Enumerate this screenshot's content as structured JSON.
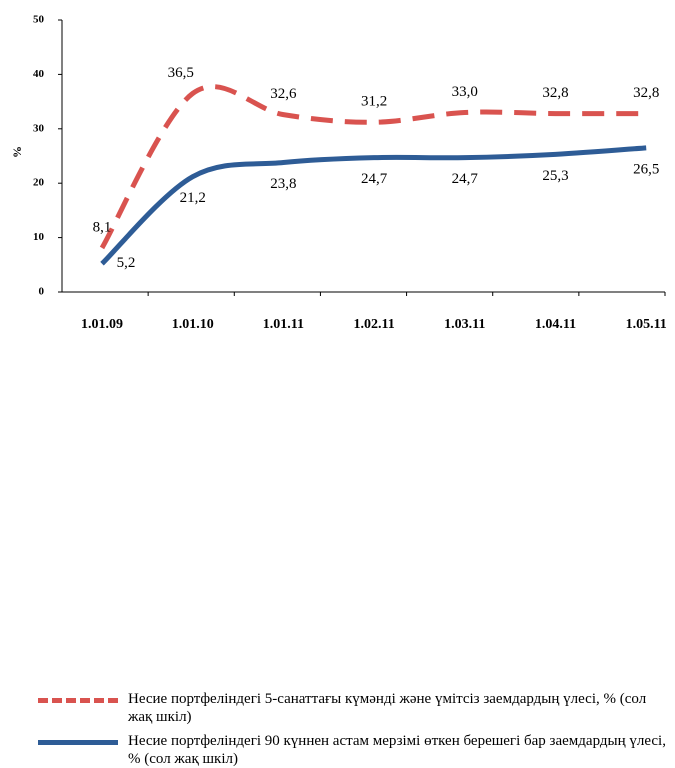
{
  "chart_data": {
    "type": "line",
    "y_label": "%",
    "categories": [
      "1.01.09",
      "1.01.10",
      "1.01.11",
      "1.02.11",
      "1.03.11",
      "1.04.11",
      "1.05.11"
    ],
    "series": [
      {
        "name": "Несие портфеліндегі 5-санаттағы күмәнді және үмітсіз заемдардың үлесі, % (сол жақ шкіл)",
        "color": "#d9534f",
        "dashed": true,
        "values": [
          8.1,
          36.5,
          32.6,
          31.2,
          33.0,
          32.8,
          32.8
        ],
        "value_labels": [
          "8,1",
          "36,5",
          "32,6",
          "31,2",
          "33,0",
          "32,8",
          "32,8"
        ]
      },
      {
        "name": "Несие портфеліндегі 90 күннен астам мерзімі өткен берешегі бар заемдардың үлесі, % (сол жақ шкіл)",
        "color": "#2e5c96",
        "dashed": false,
        "values": [
          5.2,
          21.2,
          23.8,
          24.7,
          24.7,
          25.3,
          26.5
        ],
        "value_labels": [
          "5,2",
          "21,2",
          "23,8",
          "24,7",
          "24,7",
          "25,3",
          "26,5"
        ]
      }
    ],
    "ylim": [
      0,
      50
    ],
    "yticks": [
      0,
      10,
      20,
      30,
      40,
      50
    ]
  }
}
